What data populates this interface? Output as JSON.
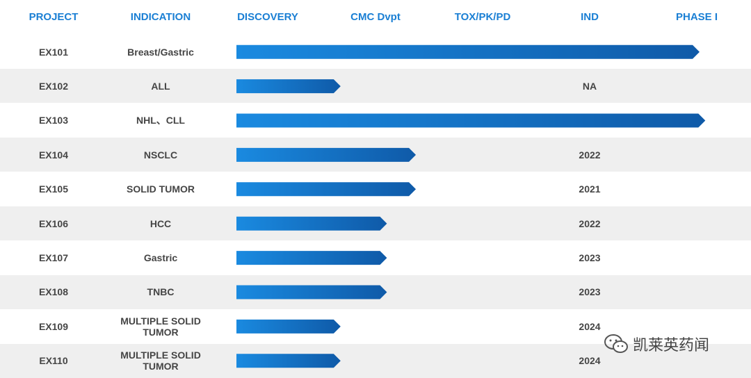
{
  "chart_data": {
    "type": "bar",
    "title": "",
    "stages": [
      "DISCOVERY",
      "CMC Dvpt",
      "TOX/PK/PD",
      "IND",
      "PHASE I"
    ],
    "columns": {
      "project": "PROJECT",
      "indication": "INDICATION"
    },
    "rows": [
      {
        "project": "EX101",
        "indication": "Breast/Gastric",
        "progress": 4.0,
        "ind": ""
      },
      {
        "project": "EX102",
        "indication": "ALL",
        "progress": 0.9,
        "ind": "NA"
      },
      {
        "project": "EX103",
        "indication": "NHL、CLL",
        "progress": 4.05,
        "ind": ""
      },
      {
        "project": "EX104",
        "indication": "NSCLC",
        "progress": 1.55,
        "ind": "2022"
      },
      {
        "project": "EX105",
        "indication": "SOLID TUMOR",
        "progress": 1.55,
        "ind": "2021"
      },
      {
        "project": "EX106",
        "indication": "HCC",
        "progress": 1.3,
        "ind": "2022"
      },
      {
        "project": "EX107",
        "indication": "Gastric",
        "progress": 1.3,
        "ind": "2023"
      },
      {
        "project": "EX108",
        "indication": "TNBC",
        "progress": 1.3,
        "ind": "2023"
      },
      {
        "project": "EX109",
        "indication": "MULTIPLE SOLID TUMOR",
        "progress": 0.9,
        "ind": "2024"
      },
      {
        "project": "EX110",
        "indication": "MULTIPLE SOLID TUMOR",
        "progress": 0.9,
        "ind": "2024"
      }
    ],
    "xlim": [
      0,
      4.1
    ],
    "colors": {
      "header": "#1a7fd4",
      "bar_start": "#1a8ae0",
      "bar_end": "#0f5aa8",
      "row_shade": "#efefef"
    }
  },
  "watermark": {
    "text": "凯莱英药闻",
    "icon": "wechat-icon"
  }
}
